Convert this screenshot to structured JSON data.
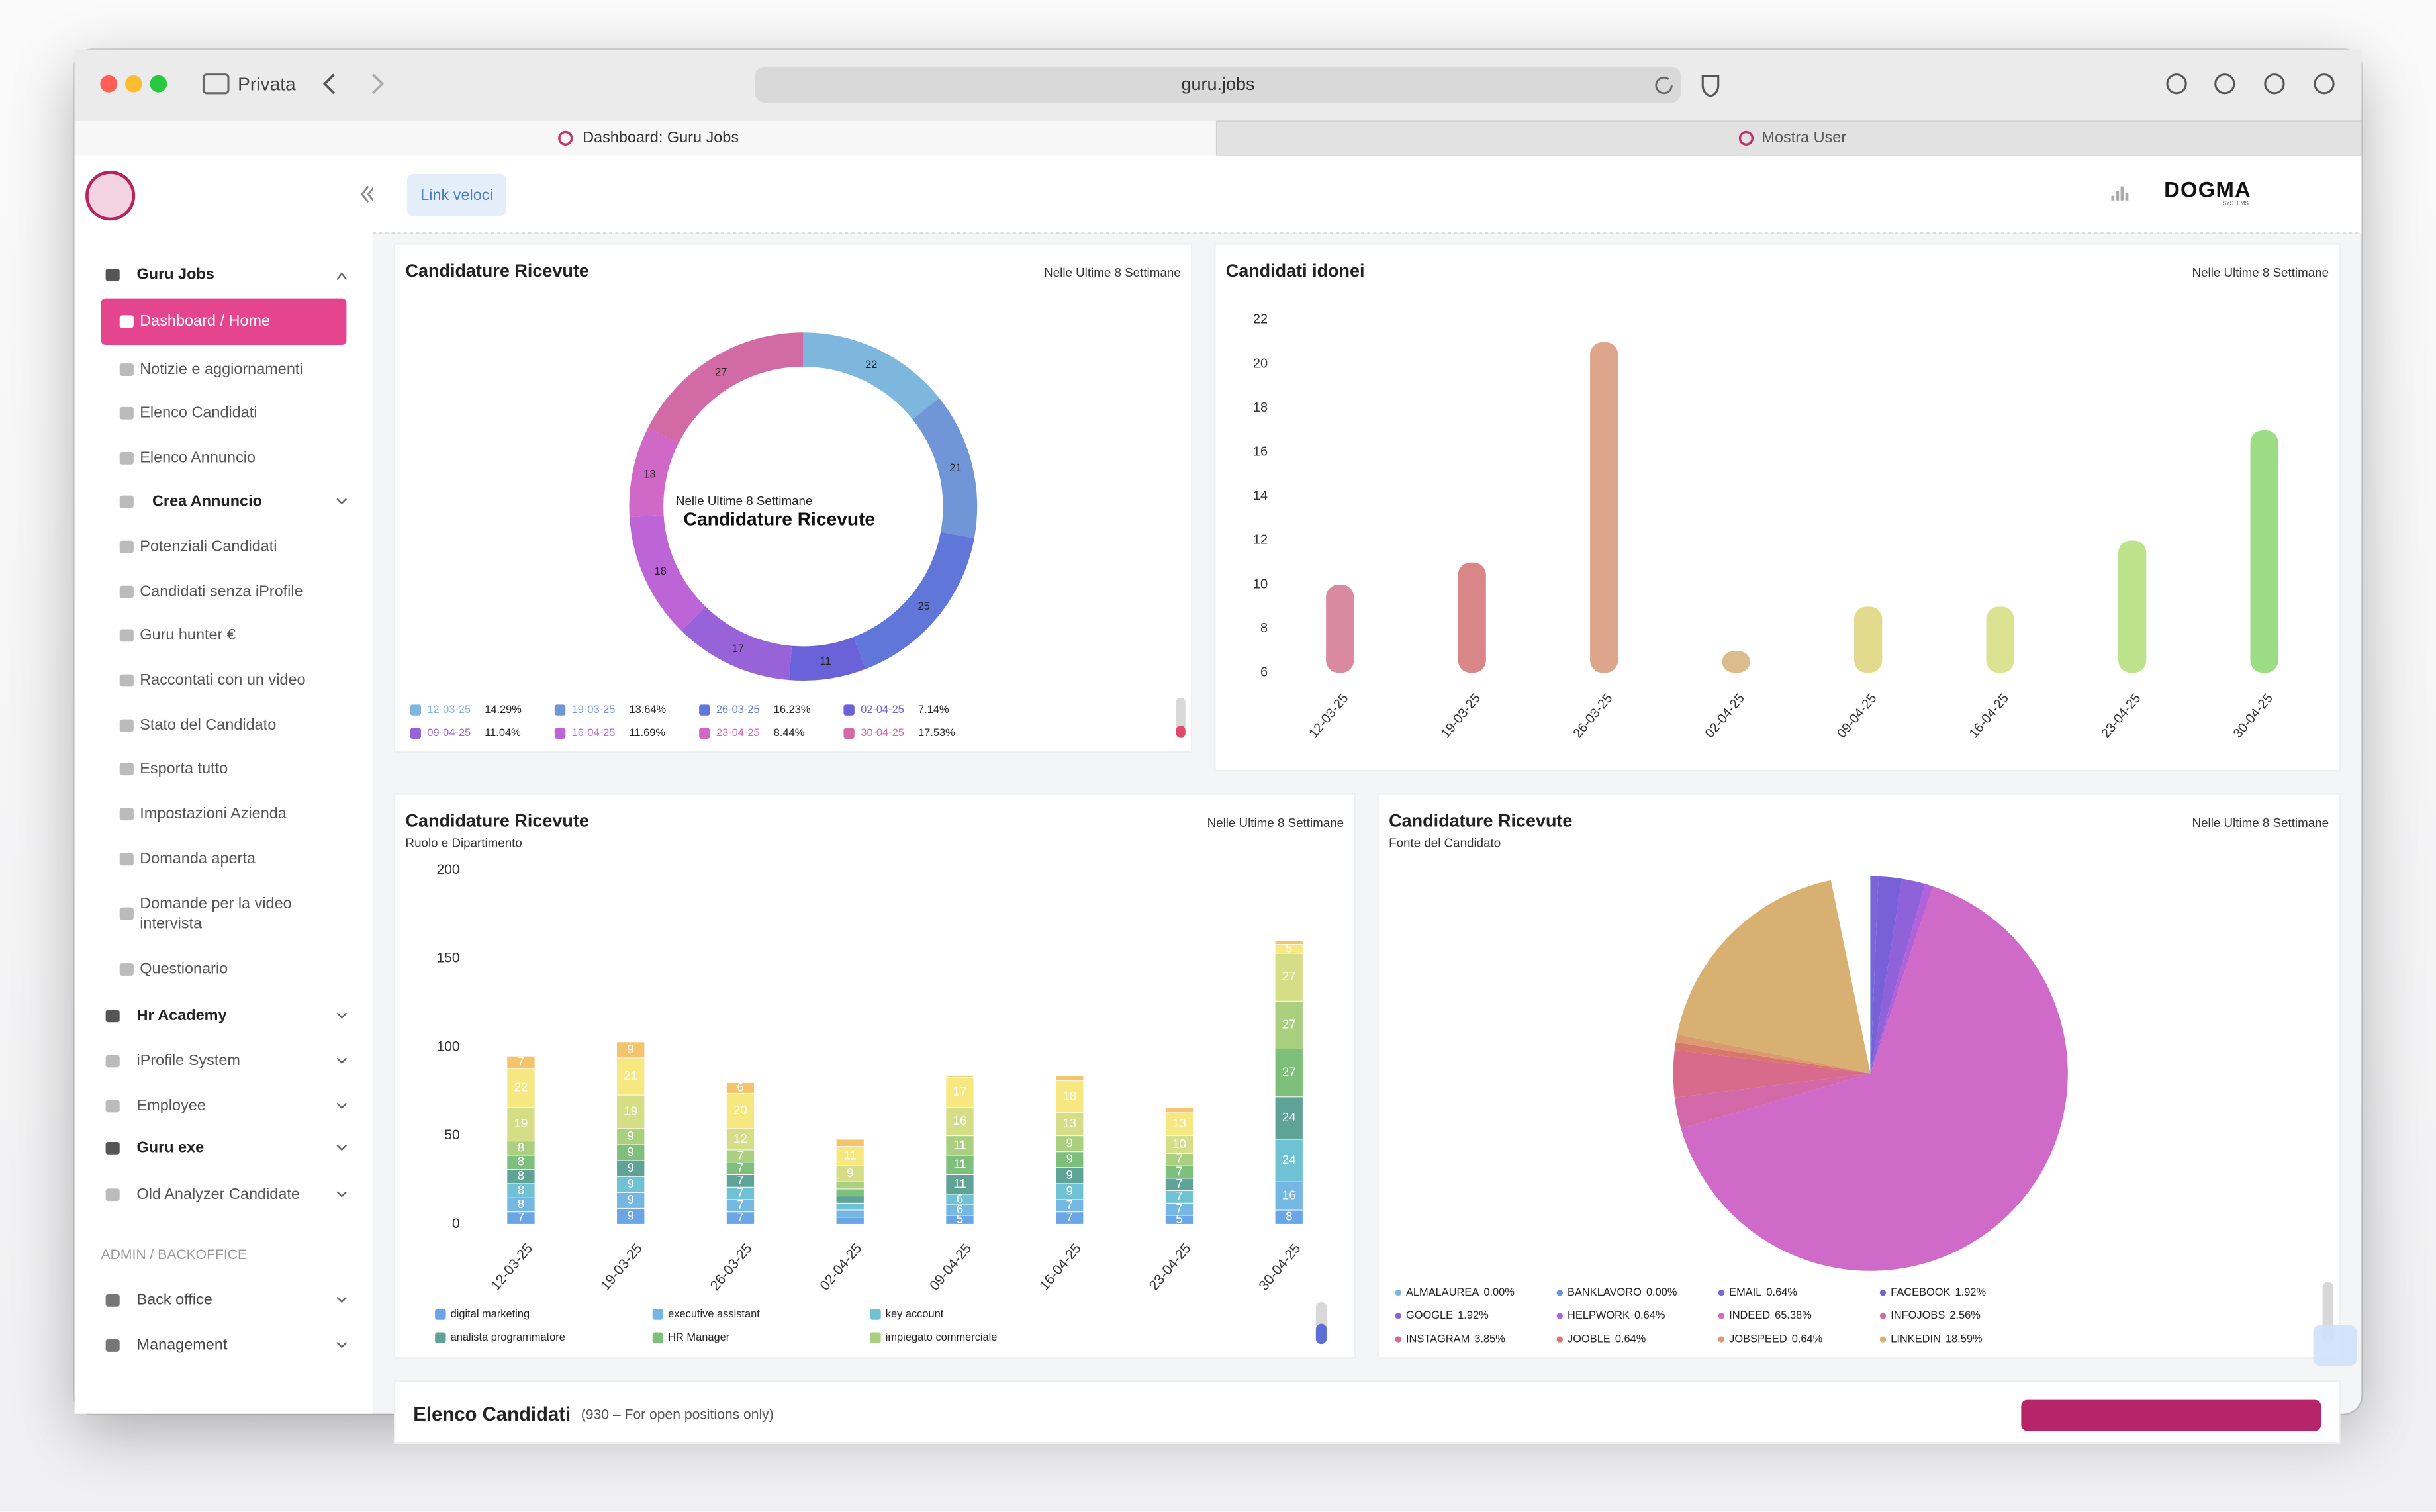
{
  "browser": {
    "mode": "Privata",
    "url": "guru.jobs",
    "tabs": [
      "Dashboard: Guru Jobs",
      "Mostra User"
    ]
  },
  "sidebar": {
    "items": [
      "Guru Jobs",
      "Dashboard / Home",
      "Notizie e aggiornamenti",
      "Elenco Candidati",
      "Elenco Annuncio",
      "Crea Annuncio",
      "Potenziali Candidati",
      "Candidati senza iProfile",
      "Guru hunter €",
      "Raccontati con un video",
      "Stato del Candidato",
      "Esporta tutto",
      "Impostazioni Azienda",
      "Domanda aperta",
      "Domande per la video intervista",
      "Questionario",
      "Hr Academy",
      "iProfile System",
      "Employee",
      "Guru exe",
      "Old Analyzer Candidate"
    ],
    "admin_heading": "ADMIN / BACKOFFICE",
    "admin_items": [
      "Back office",
      "Management"
    ]
  },
  "topbar": {
    "quick_links": "Link veloci",
    "brand": "DOGMA",
    "brand_sub": "SYSTEMS"
  },
  "donut": {
    "type": "donut",
    "title": "Candidature Ricevute",
    "period": "Nelle Ultime 8 Settimane",
    "center_subtitle": "Nelle Ultime 8 Settimane",
    "center_title": "Candidature Ricevute",
    "categories": [
      "12-03-25",
      "19-03-25",
      "26-03-25",
      "02-04-25",
      "09-04-25",
      "16-04-25",
      "23-04-25",
      "30-04-25"
    ],
    "values": [
      22,
      21,
      25,
      11,
      17,
      18,
      13,
      27
    ],
    "shares": [
      14.29,
      13.64,
      16.23,
      7.14,
      11.04,
      11.69,
      8.44,
      17.53
    ],
    "share_labels": [
      "14.29%",
      "13.64%",
      "16.23%",
      "7.14%",
      "11.04%",
      "11.69%",
      "8.44%",
      "17.53%"
    ],
    "colors": [
      "#7db7dd",
      "#7196d8",
      "#6176d9",
      "#6a62d8",
      "#9862d9",
      "#bd64d7",
      "#cf68c6",
      "#d26aa6"
    ]
  },
  "idonei": {
    "type": "bar",
    "title": "Candidati idonei",
    "period": "Nelle Ultime 8 Settimane",
    "categories": [
      "12-03-25",
      "19-03-25",
      "26-03-25",
      "02-04-25",
      "09-04-25",
      "16-04-25",
      "23-04-25",
      "30-04-25"
    ],
    "values": [
      10,
      11,
      21,
      7,
      9,
      9,
      12,
      17
    ],
    "colors": [
      "#d98aa0",
      "#d98686",
      "#dca58c",
      "#dcbb8c",
      "#e2da8c",
      "#dbe292",
      "#bce28c",
      "#9bdc84"
    ],
    "ylim": [
      6,
      22
    ],
    "yticks": [
      6,
      8,
      10,
      12,
      14,
      16,
      18,
      20,
      22
    ]
  },
  "stacked": {
    "type": "stacked-bar",
    "title": "Candidature Ricevute",
    "subtitle": "Ruolo e Dipartimento",
    "period": "Nelle Ultime 8 Settimane",
    "categories": [
      "12-03-25",
      "19-03-25",
      "26-03-25",
      "02-04-25",
      "09-04-25",
      "16-04-25",
      "23-04-25",
      "30-04-25"
    ],
    "ylim": [
      0,
      200
    ],
    "yticks": [
      0,
      50,
      100,
      150,
      200
    ],
    "series": [
      {
        "name": "digital marketing",
        "color": "#6aa6e6",
        "values": [
          7,
          9,
          7,
          4,
          5,
          7,
          5,
          8
        ]
      },
      {
        "name": "executive assistant",
        "color": "#74b7e2",
        "values": [
          8,
          9,
          7,
          4,
          6,
          7,
          7,
          16
        ]
      },
      {
        "name": "key account",
        "color": "#6fc2d4",
        "values": [
          8,
          9,
          7,
          4,
          6,
          9,
          7,
          24
        ]
      },
      {
        "name": "analista programmatore",
        "color": "#5fa396",
        "values": [
          8,
          9,
          7,
          4,
          11,
          9,
          7,
          24
        ]
      },
      {
        "name": "HR Manager",
        "color": "#7dbf7b",
        "values": [
          8,
          9,
          7,
          4,
          11,
          9,
          7,
          27
        ]
      },
      {
        "name": "impiegato commerciale",
        "color": "#a9cf7f",
        "values": [
          8,
          9,
          7,
          4,
          11,
          9,
          7,
          27
        ]
      },
      {
        "name": null,
        "color": "#d5de87",
        "values": [
          19,
          19,
          12,
          9,
          16,
          13,
          10,
          27
        ]
      },
      {
        "name": null,
        "color": "#f6e780",
        "values": [
          22,
          21,
          20,
          11,
          17,
          18,
          13,
          5
        ]
      },
      {
        "name": null,
        "color": "#f3c46c",
        "values": [
          7,
          9,
          6,
          4,
          1,
          3,
          3,
          2
        ]
      }
    ]
  },
  "pie": {
    "type": "pie",
    "title": "Candidature Ricevute",
    "subtitle": "Fonte del Candidato",
    "period": "Nelle Ultime 8 Settimane",
    "categories": [
      "ALMALAUREA",
      "BANKLAVORO",
      "EMAIL",
      "FACEBOOK",
      "GOOGLE",
      "HELPWORK",
      "INDEED",
      "INFOJOBS",
      "INSTAGRAM",
      "JOOBLE",
      "JOBSPEED",
      "LINKEDIN"
    ],
    "values": [
      0,
      0,
      0.64,
      1.92,
      1.92,
      0.64,
      65.38,
      2.56,
      3.85,
      0.64,
      0.64,
      18.59
    ],
    "value_labels": [
      "0.00%",
      "0.00%",
      "0.64%",
      "1.92%",
      "1.92%",
      "0.64%",
      "65.38%",
      "2.56%",
      "3.85%",
      "0.64%",
      "0.64%",
      "18.59%"
    ],
    "colors": [
      "#7ab8dc",
      "#6f93d8",
      "#7a66d8",
      "#7760d8",
      "#8f62d9",
      "#b262d8",
      "#d06ac8",
      "#d469a9",
      "#d86a8c",
      "#d9776c",
      "#dc9a70",
      "#d8b072"
    ]
  },
  "list_card": {
    "title": "Elenco Candidati",
    "note": "(930 – For open positions only)"
  }
}
